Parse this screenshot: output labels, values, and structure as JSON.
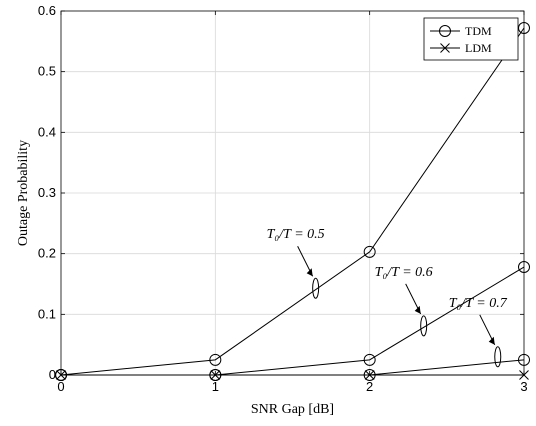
{
  "chart_data": {
    "type": "line",
    "x": [
      0,
      1,
      2,
      3
    ],
    "xlabel": "SNR Gap [dB]",
    "ylabel": "Outage Probability",
    "xlim": [
      0,
      3
    ],
    "ylim": [
      0,
      0.6
    ],
    "xticks": [
      "0",
      "1",
      "2",
      "3"
    ],
    "yticks": [
      "0",
      "0.1",
      "0.2",
      "0.3",
      "0.4",
      "0.5",
      "0.6"
    ],
    "grid": true,
    "legend_position": "top-right",
    "legend": [
      {
        "label": "TDM",
        "marker": "circle"
      },
      {
        "label": "LDM",
        "marker": "cross"
      }
    ],
    "series": [
      {
        "name": "TDM",
        "curve": "T0/T=0.5",
        "marker": "circle",
        "values": [
          0.0,
          0.025,
          0.203,
          0.572
        ]
      },
      {
        "name": "TDM",
        "curve": "T0/T=0.6",
        "marker": "circle",
        "values": [
          0.0,
          0.0,
          0.025,
          0.178
        ]
      },
      {
        "name": "TDM",
        "curve": "T0/T=0.7",
        "marker": "circle",
        "values": [
          0.0,
          0.0,
          0.0,
          0.025
        ]
      },
      {
        "name": "LDM",
        "marker": "cross",
        "values": [
          0.0,
          0.0,
          0.0,
          0.0
        ]
      }
    ],
    "annotations": [
      {
        "text": "T₀/T = 0.5",
        "x": 1.65,
        "y": 0.143
      },
      {
        "text": "T₀/T = 0.6",
        "x": 2.35,
        "y": 0.081
      },
      {
        "text": "T₀/T = 0.7",
        "x": 2.83,
        "y": 0.03
      }
    ]
  }
}
